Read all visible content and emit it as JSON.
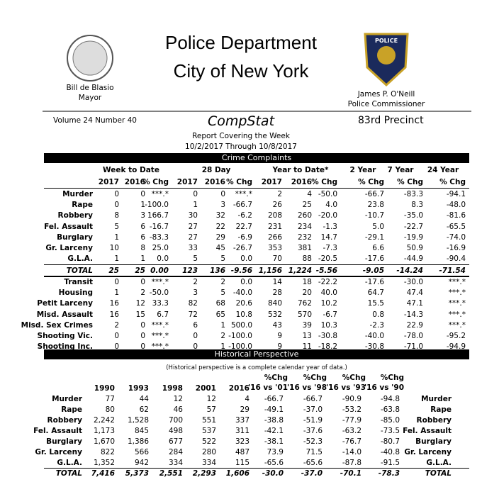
{
  "header": {
    "title_line1": "Police Department",
    "title_line2": "City of New York",
    "mayor_name": "Bill de Blasio",
    "mayor_title": "Mayor",
    "commissioner_name": "James P. O'Neill",
    "commissioner_title": "Police Commissioner",
    "badge_text": "POLICE"
  },
  "report": {
    "volume": "Volume 24  Number 40",
    "title": "CompStat",
    "precinct": "83rd Precinct",
    "subtitle": "Report Covering the Week",
    "dates": "10/2/2017  Through  10/8/2017"
  },
  "complaints": {
    "title": "Crime Complaints",
    "groups": [
      "Week to Date",
      "28 Day",
      "Year to Date*",
      "2 Year",
      "7 Year",
      "24 Year"
    ],
    "columns": [
      "2017",
      "2016",
      "% Chg",
      "2017",
      "2016",
      "% Chg",
      "2017",
      "2016",
      "% Chg",
      "% Chg",
      "% Chg",
      "% Chg"
    ],
    "rows": [
      [
        "Murder",
        "0",
        "0",
        "***.*",
        "0",
        "0",
        "***.*",
        "2",
        "4",
        "-50.0",
        "-66.7",
        "-83.3",
        "-94.1"
      ],
      [
        "Rape",
        "0",
        "1",
        "-100.0",
        "1",
        "3",
        "-66.7",
        "26",
        "25",
        "4.0",
        "23.8",
        "8.3",
        "-48.0"
      ],
      [
        "Robbery",
        "8",
        "3",
        "166.7",
        "30",
        "32",
        "-6.2",
        "208",
        "260",
        "-20.0",
        "-10.7",
        "-35.0",
        "-81.6"
      ],
      [
        "Fel. Assault",
        "5",
        "6",
        "-16.7",
        "27",
        "22",
        "22.7",
        "231",
        "234",
        "-1.3",
        "5.0",
        "-22.7",
        "-65.5"
      ],
      [
        "Burglary",
        "1",
        "6",
        "-83.3",
        "27",
        "29",
        "-6.9",
        "266",
        "232",
        "14.7",
        "-29.1",
        "-19.9",
        "-74.0"
      ],
      [
        "Gr. Larceny",
        "10",
        "8",
        "25.0",
        "33",
        "45",
        "-26.7",
        "353",
        "381",
        "-7.3",
        "6.6",
        "50.9",
        "-16.9"
      ],
      [
        "G.L.A.",
        "1",
        "1",
        "0.0",
        "5",
        "5",
        "0.0",
        "70",
        "88",
        "-20.5",
        "-17.6",
        "-44.9",
        "-90.4"
      ]
    ],
    "total": [
      "TOTAL",
      "25",
      "25",
      "0.00",
      "123",
      "136",
      "-9.56",
      "1,156",
      "1,224",
      "-5.56",
      "-9.05",
      "-14.24",
      "-71.54"
    ],
    "other_rows": [
      [
        "Transit",
        "0",
        "0",
        "***.*",
        "2",
        "2",
        "0.0",
        "14",
        "18",
        "-22.2",
        "-17.6",
        "-30.0",
        "***.*"
      ],
      [
        "Housing",
        "1",
        "2",
        "-50.0",
        "3",
        "5",
        "-40.0",
        "28",
        "20",
        "40.0",
        "64.7",
        "47.4",
        "***.*"
      ],
      [
        "Petit Larceny",
        "16",
        "12",
        "33.3",
        "82",
        "68",
        "20.6",
        "840",
        "762",
        "10.2",
        "15.5",
        "47.1",
        "***.*"
      ],
      [
        "Misd. Assault",
        "16",
        "15",
        "6.7",
        "72",
        "65",
        "10.8",
        "532",
        "570",
        "-6.7",
        "0.8",
        "-14.3",
        "***.*"
      ],
      [
        "Misd. Sex Crimes",
        "2",
        "0",
        "***.*",
        "6",
        "1",
        "500.0",
        "43",
        "39",
        "10.3",
        "-2.3",
        "22.9",
        "***.*"
      ],
      [
        "Shooting Vic.",
        "0",
        "0",
        "***.*",
        "0",
        "2",
        "-100.0",
        "9",
        "13",
        "-30.8",
        "-40.0",
        "-78.0",
        "-95.2"
      ],
      [
        "Shooting Inc.",
        "0",
        "0",
        "***.*",
        "0",
        "1",
        "-100.0",
        "9",
        "11",
        "-18.2",
        "-30.8",
        "-71.0",
        "-94.9"
      ]
    ]
  },
  "historical": {
    "title": "Historical Perspective",
    "note": "(Historical perspective is a complete calendar year of data.)",
    "columns": [
      [
        "1990"
      ],
      [
        "1993"
      ],
      [
        "1998"
      ],
      [
        "2001"
      ],
      [
        "2016"
      ],
      [
        "%Chg",
        "'16 vs '01"
      ],
      [
        "%Chg",
        "'16 vs '98"
      ],
      [
        "%Chg",
        "'16 vs '93"
      ],
      [
        "%Chg",
        "'16 vs '90"
      ]
    ],
    "rows": [
      [
        "Murder",
        "77",
        "44",
        "12",
        "12",
        "4",
        "-66.7",
        "-66.7",
        "-90.9",
        "-94.8"
      ],
      [
        "Rape",
        "80",
        "62",
        "46",
        "57",
        "29",
        "-49.1",
        "-37.0",
        "-53.2",
        "-63.8"
      ],
      [
        "Robbery",
        "2,242",
        "1,528",
        "700",
        "551",
        "337",
        "-38.8",
        "-51.9",
        "-77.9",
        "-85.0"
      ],
      [
        "Fel. Assault",
        "1,173",
        "845",
        "498",
        "537",
        "311",
        "-42.1",
        "-37.6",
        "-63.2",
        "-73.5"
      ],
      [
        "Burglary",
        "1,670",
        "1,386",
        "677",
        "522",
        "323",
        "-38.1",
        "-52.3",
        "-76.7",
        "-80.7"
      ],
      [
        "Gr. Larceny",
        "822",
        "566",
        "284",
        "280",
        "487",
        "73.9",
        "71.5",
        "-14.0",
        "-40.8"
      ],
      [
        "G.L.A.",
        "1,352",
        "942",
        "334",
        "334",
        "115",
        "-65.6",
        "-65.6",
        "-87.8",
        "-91.5"
      ],
      [
        "TOTAL",
        "7,416",
        "5,373",
        "2,551",
        "2,293",
        "1,606",
        "-30.0",
        "-37.0",
        "-70.1",
        "-78.3"
      ]
    ]
  }
}
